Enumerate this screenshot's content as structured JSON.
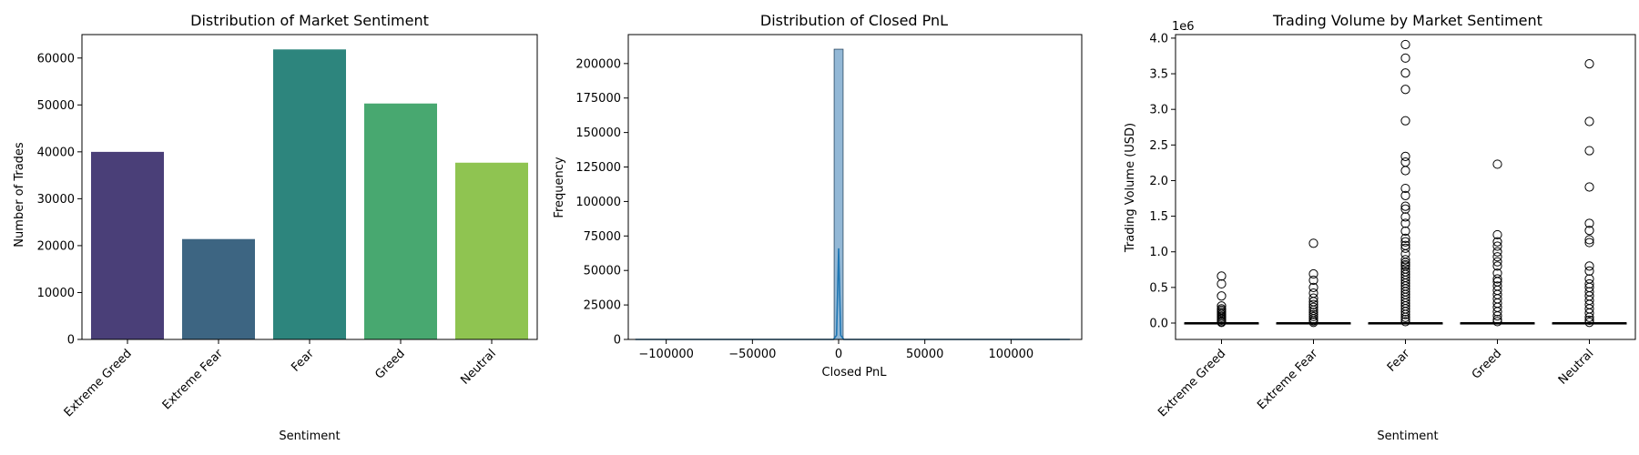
{
  "chart_data": [
    {
      "type": "bar",
      "title": "Distribution of Market Sentiment",
      "xlabel": "Sentiment",
      "ylabel": "Number of Trades",
      "categories": [
        "Extreme Greed",
        "Extreme Fear",
        "Fear",
        "Greed",
        "Neutral"
      ],
      "values": [
        39992,
        21400,
        61837,
        50303,
        37686
      ],
      "colors": [
        "#4a3f78",
        "#3d6582",
        "#2d857d",
        "#48a870",
        "#8fc451"
      ],
      "ylim": [
        0,
        65000
      ],
      "yticks": [
        "0",
        "10000",
        "20000",
        "30000",
        "40000",
        "50000",
        "60000"
      ],
      "grid": false
    },
    {
      "type": "histogram",
      "title": "Distribution of Closed PnL",
      "xlabel": "Closed PnL",
      "ylabel": "Frequency",
      "xlim": [
        -122000,
        141000
      ],
      "ylim": [
        0,
        221000
      ],
      "xticks": [
        "−100000",
        "−50000",
        "0",
        "50000",
        "100000"
      ],
      "yticks": [
        "0",
        "25000",
        "50000",
        "75000",
        "100000",
        "125000",
        "150000",
        "175000",
        "200000"
      ],
      "bins": [
        {
          "x0": -2600,
          "x1": 2600,
          "count": 210400
        }
      ],
      "kde": {
        "x": [
          -117900,
          -20000,
          -3000,
          -1200,
          0,
          1200,
          3000,
          20000,
          134100
        ],
        "y": [
          0,
          0,
          0,
          3000,
          66000,
          3000,
          0,
          0,
          0
        ]
      },
      "bar_color": "#93b8d6",
      "line_color": "#1f77b4",
      "grid": false
    },
    {
      "type": "box",
      "title": "Trading Volume by Market Sentiment",
      "xlabel": "Sentiment",
      "ylabel": "Trading Volume (USD)",
      "offset_label": "1e6",
      "categories": [
        "Extreme Greed",
        "Extreme Fear",
        "Fear",
        "Greed",
        "Neutral"
      ],
      "ylim": [
        -0.23,
        4.05
      ],
      "yticks": [
        "0.0",
        "0.5",
        "1.0",
        "1.5",
        "2.0",
        "2.5",
        "3.0",
        "3.5",
        "4.0"
      ],
      "boxes": [
        {
          "median": 0.002,
          "q1": 0.0,
          "q3": 0.003
        },
        {
          "median": 0.002,
          "q1": 0.0,
          "q3": 0.003
        },
        {
          "median": 0.002,
          "q1": 0.0,
          "q3": 0.003
        },
        {
          "median": 0.002,
          "q1": 0.0,
          "q3": 0.003
        },
        {
          "median": 0.002,
          "q1": 0.0,
          "q3": 0.003
        }
      ],
      "outliers": [
        [
          0.66,
          0.55,
          0.38,
          0.24,
          0.2,
          0.18,
          0.16,
          0.14,
          0.12,
          0.1,
          0.08,
          0.06,
          0.04,
          0.02,
          0.01
        ],
        [
          1.12,
          0.69,
          0.6,
          0.5,
          0.42,
          0.35,
          0.3,
          0.26,
          0.22,
          0.18,
          0.15,
          0.12,
          0.09,
          0.06,
          0.03,
          0.01
        ],
        [
          3.91,
          3.72,
          3.51,
          3.28,
          2.84,
          2.34,
          2.26,
          2.14,
          1.89,
          1.79,
          1.64,
          1.6,
          1.49,
          1.4,
          1.29,
          1.19,
          1.14,
          1.09,
          1.05,
          0.97,
          0.89,
          0.85,
          0.82,
          0.8,
          0.76,
          0.72,
          0.68,
          0.64,
          0.6,
          0.56,
          0.52,
          0.48,
          0.44,
          0.4,
          0.36,
          0.32,
          0.28,
          0.24,
          0.2,
          0.16,
          0.12,
          0.08,
          0.05,
          0.02
        ],
        [
          2.23,
          1.24,
          1.14,
          1.08,
          1.0,
          0.93,
          0.86,
          0.8,
          0.7,
          0.62,
          0.58,
          0.52,
          0.46,
          0.4,
          0.34,
          0.28,
          0.22,
          0.16,
          0.1,
          0.05,
          0.02
        ],
        [
          3.64,
          2.83,
          2.42,
          1.91,
          1.4,
          1.3,
          1.17,
          1.13,
          0.8,
          0.73,
          0.62,
          0.55,
          0.5,
          0.44,
          0.38,
          0.32,
          0.26,
          0.2,
          0.14,
          0.08,
          0.04,
          0.01
        ]
      ],
      "grid": false
    }
  ]
}
